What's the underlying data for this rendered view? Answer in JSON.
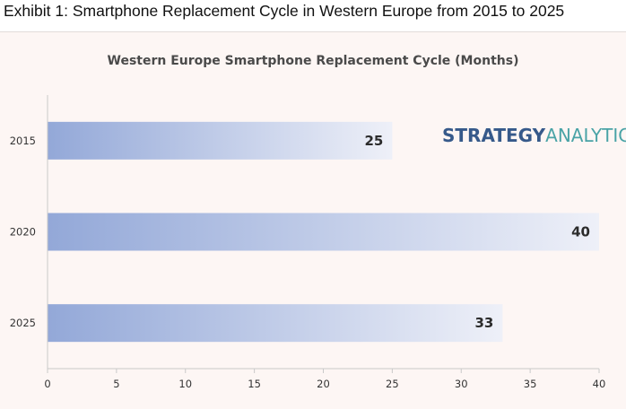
{
  "page": {
    "exhibit_title": "Exhibit 1: Smartphone Replacement Cycle in Western Europe from 2015 to 2025"
  },
  "logo": {
    "part1": "STRATEGY",
    "part2": "ANALYTICS",
    "color1": "#36598a",
    "color2": "#49a3a6"
  },
  "colors": {
    "panel_bg": "#fdf6f4",
    "bar_start": "#93a8d8",
    "bar_end": "#eef0f8",
    "axis": "#c9c9c9"
  },
  "chart_data": {
    "type": "bar",
    "orientation": "horizontal",
    "title": "Western Europe Smartphone Replacement Cycle (Months)",
    "categories": [
      "2015",
      "2020",
      "2025"
    ],
    "values": [
      25,
      40,
      33
    ],
    "data_labels": [
      "25",
      "40",
      "33"
    ],
    "xlim": [
      0,
      40
    ],
    "x_ticks": [
      0,
      5,
      10,
      15,
      20,
      25,
      30,
      35,
      40
    ],
    "grid": false,
    "legend": "none",
    "bar_fill": "horizontal gradient from #93a8d8 to #eef0f8"
  }
}
